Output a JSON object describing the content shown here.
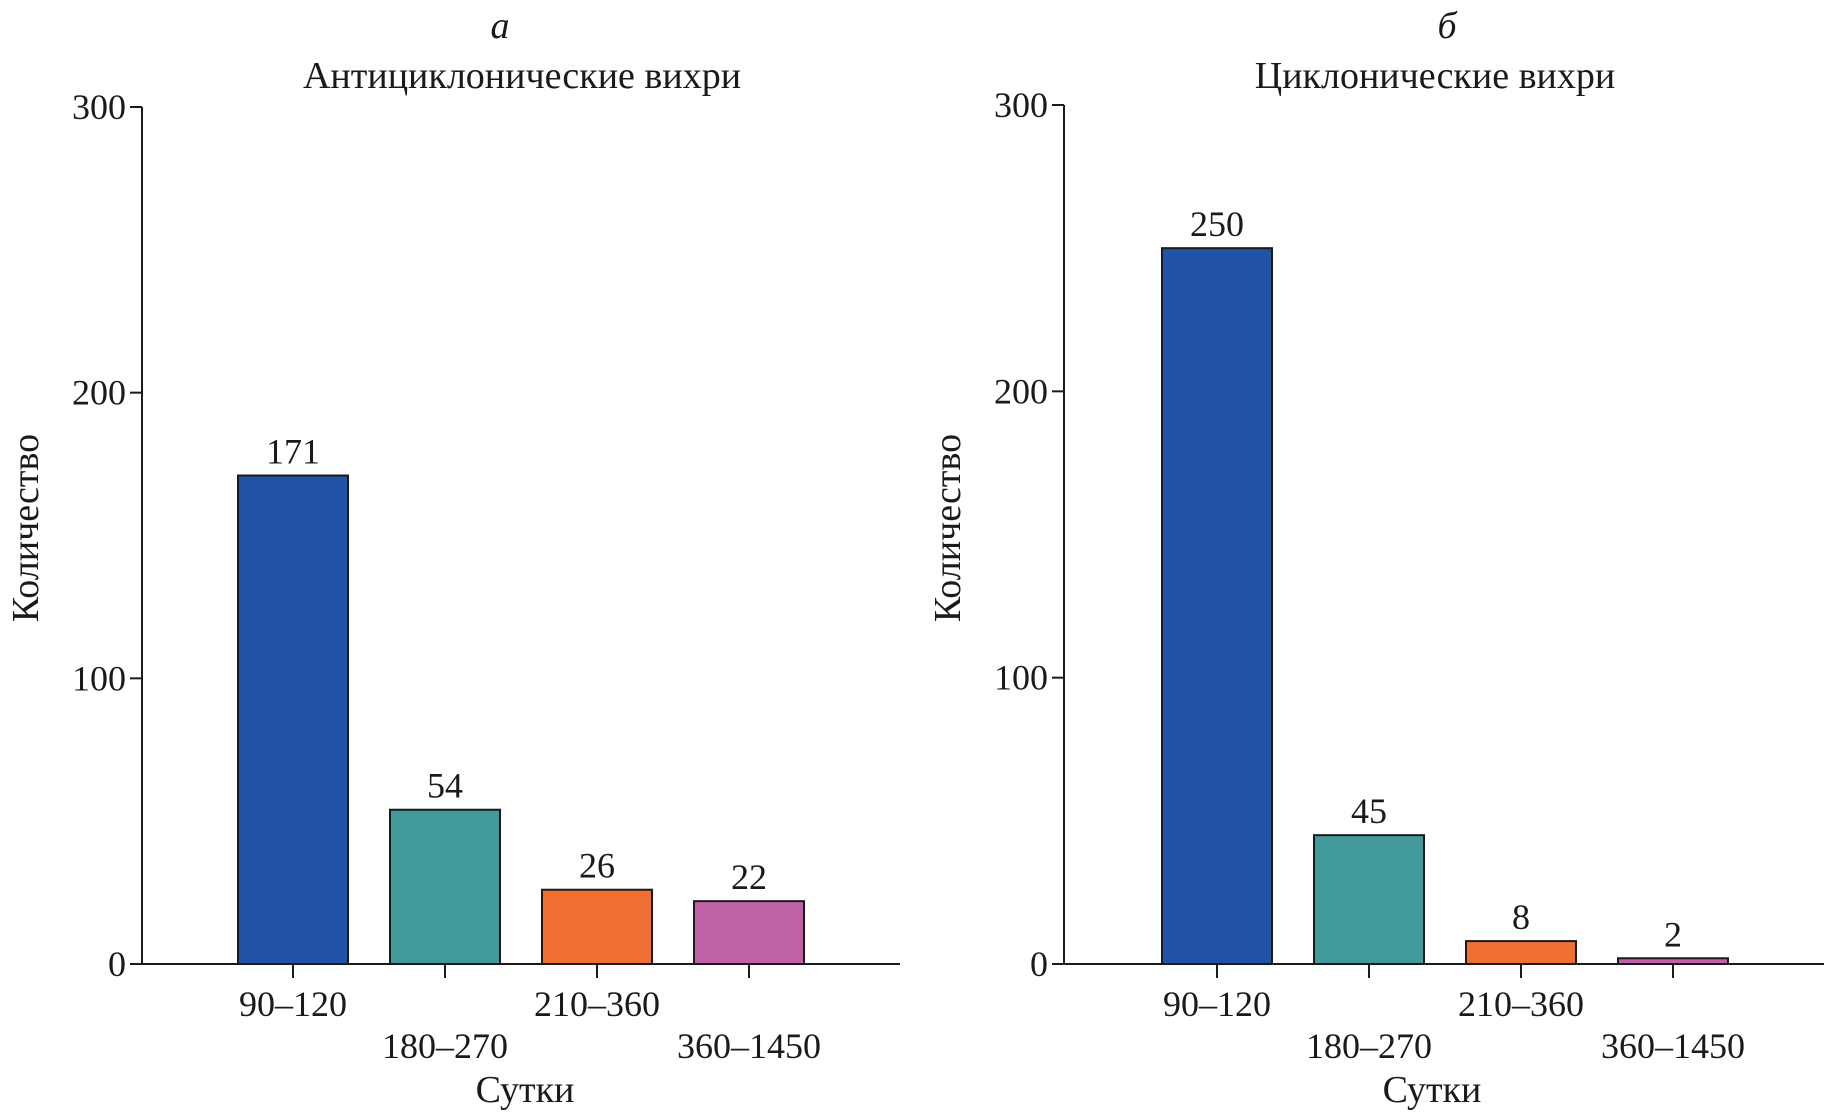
{
  "chart_data": [
    {
      "type": "bar",
      "panel": "а",
      "title": "Антициклонические вихри",
      "xlabel": "Сутки",
      "ylabel": "Количество",
      "ylim": [
        0,
        300
      ],
      "yticks": [
        0,
        100,
        200,
        300
      ],
      "categories": [
        "90–120",
        "180–270",
        "210–360",
        "360–1450"
      ],
      "values": [
        171,
        54,
        26,
        22
      ],
      "value_labels": [
        "171",
        "54",
        "26",
        "22"
      ],
      "colors": [
        "#2153a6",
        "#429a9a",
        "#f07034",
        "#c062a8"
      ],
      "grid": false
    },
    {
      "type": "bar",
      "panel": "б",
      "title": "Циклонические вихри",
      "xlabel": "Сутки",
      "ylabel": "Количество",
      "ylim": [
        0,
        300
      ],
      "yticks": [
        0,
        100,
        200,
        300
      ],
      "categories": [
        "90–120",
        "180–270",
        "210–360",
        "360–1450"
      ],
      "values": [
        250,
        45,
        8,
        2
      ],
      "value_labels": [
        "250",
        "45",
        "8",
        "2"
      ],
      "colors": [
        "#2153a6",
        "#429a9a",
        "#f07034",
        "#c062a8"
      ],
      "grid": false
    }
  ]
}
